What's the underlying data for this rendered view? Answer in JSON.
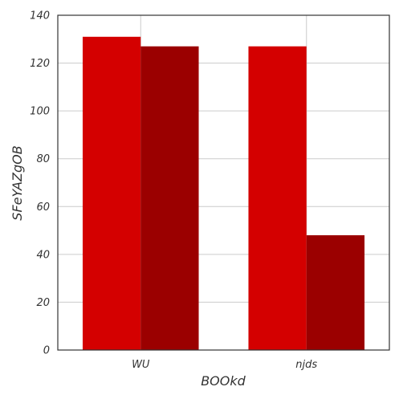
{
  "chart_data": {
    "type": "bar",
    "title": "",
    "xlabel": "BOOkd",
    "ylabel": "SFeYAZgOB",
    "categories": [
      "WU",
      "njds"
    ],
    "series": [
      {
        "values": [
          131,
          127
        ],
        "color": "#d40000"
      },
      {
        "values": [
          127,
          48
        ],
        "color": "#9b0000"
      }
    ],
    "ylim": [
      0,
      140
    ],
    "yticks": [
      "0",
      "20",
      "40",
      "60",
      "80",
      "100",
      "120",
      "140"
    ],
    "grid": true,
    "legend": "none"
  }
}
